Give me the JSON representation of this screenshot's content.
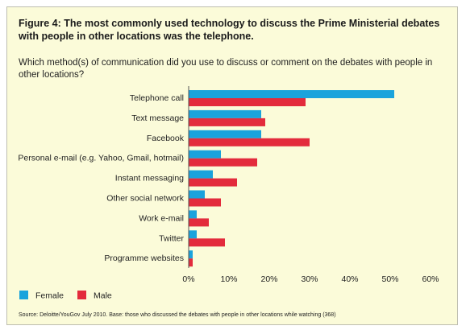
{
  "title": "Figure 4: The most commonly used technology to discuss the Prime Ministerial debates with people in other locations was the telephone.",
  "subtitle": "Which method(s) of communication did you use to discuss or comment on the debates with people in other locations?",
  "source": "Source: Deloitte/YouGov July 2010. Base: those who discussed the debates with people in other locations while watching (368)",
  "colors": {
    "female": "#1aa3dc",
    "male": "#e32b3c",
    "panel": "#fbfbd9"
  },
  "chart_data": {
    "type": "bar",
    "orientation": "horizontal",
    "categories": [
      "Telephone call",
      "Text message",
      "Facebook",
      "Personal e-mail (e.g. Yahoo, Gmail, hotmail)",
      "Instant messaging",
      "Other social network",
      "Work e-mail",
      "Twitter",
      "Programme websites"
    ],
    "series": [
      {
        "name": "Female",
        "color": "#1aa3dc",
        "values": [
          51,
          18,
          18,
          8,
          6,
          4,
          2,
          2,
          1
        ]
      },
      {
        "name": "Male",
        "color": "#e32b3c",
        "values": [
          29,
          19,
          30,
          17,
          12,
          8,
          5,
          9,
          1
        ]
      }
    ],
    "xlim": [
      0,
      60
    ],
    "xticks": [
      "0%",
      "10%",
      "20%",
      "30%",
      "40%",
      "50%",
      "60%"
    ],
    "xlabel": "",
    "ylabel": "",
    "legend_position": "bottom-left",
    "grid": false
  }
}
